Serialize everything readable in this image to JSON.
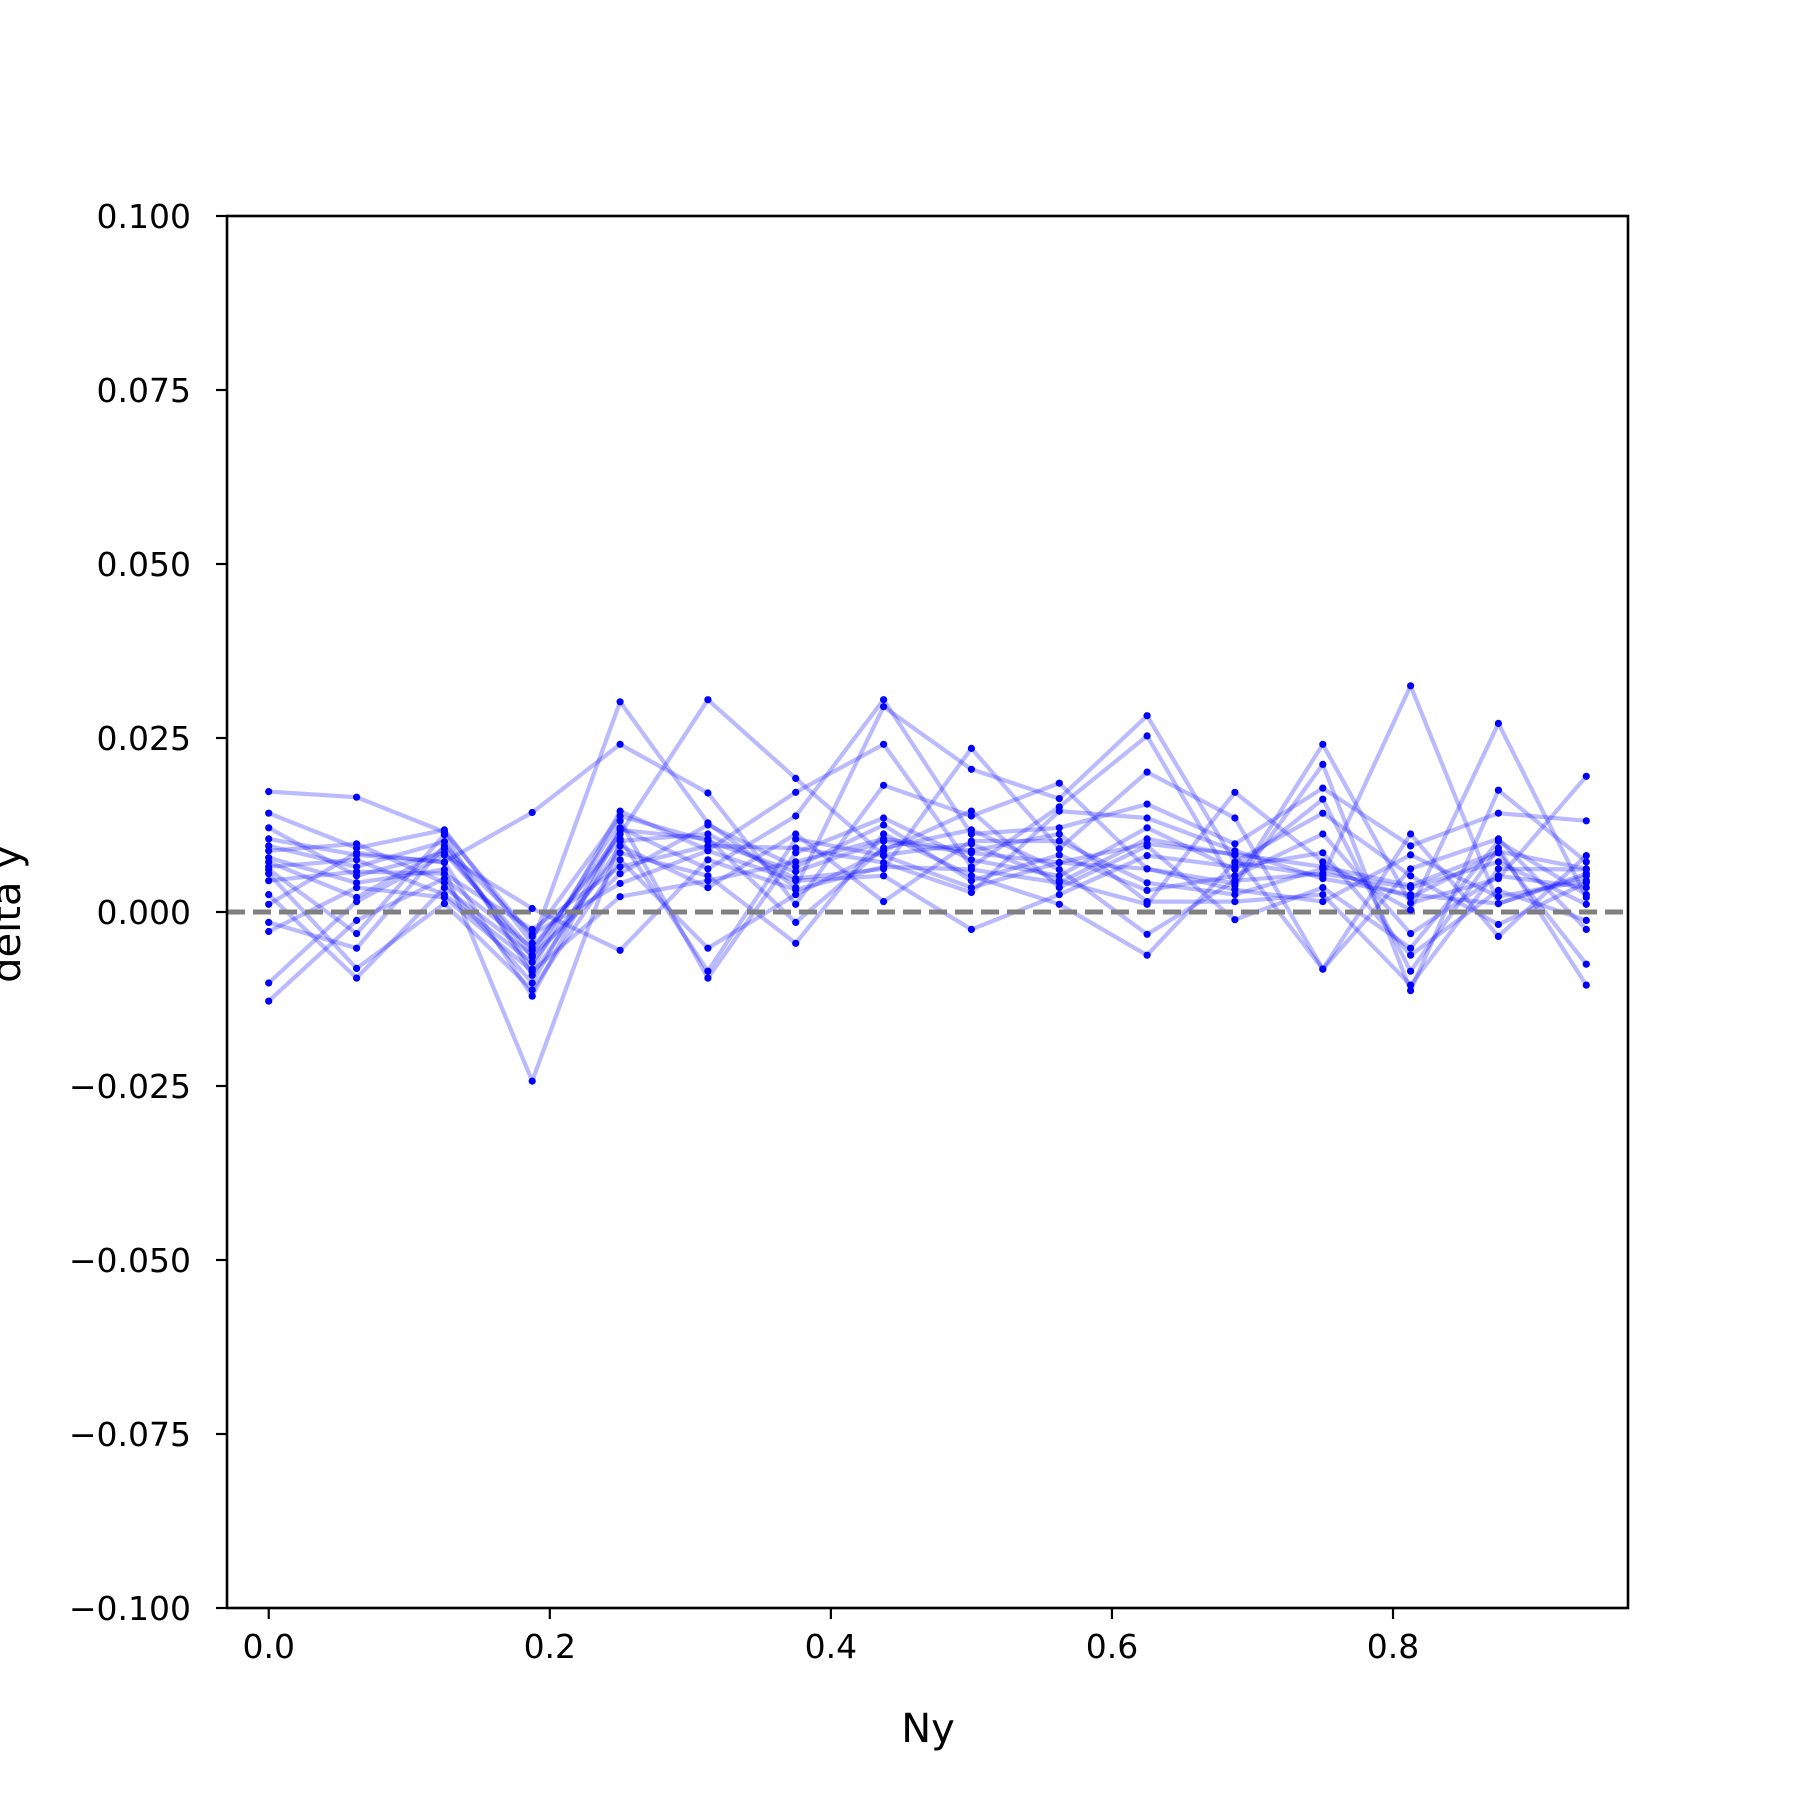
{
  "chart_data": {
    "type": "line",
    "title": "",
    "xlabel": "Ny",
    "ylabel": "delta y",
    "xlim": [
      -0.0297,
      0.9672
    ],
    "ylim": [
      -0.1,
      0.1
    ],
    "xticks": [
      0.0,
      0.2,
      0.4,
      0.6,
      0.8
    ],
    "xtick_labels": [
      "0.0",
      "0.2",
      "0.4",
      "0.6",
      "0.8"
    ],
    "yticks": [
      -0.1,
      -0.075,
      -0.05,
      -0.025,
      0.0,
      0.025,
      0.05,
      0.075,
      0.1
    ],
    "ytick_labels": [
      "−0.100",
      "−0.075",
      "−0.050",
      "−0.025",
      "0.000",
      "0.025",
      "0.050",
      "0.075",
      "0.100"
    ],
    "grid": false,
    "line_color": "#0000ff",
    "line_alpha": 0.27,
    "marker": "dot",
    "reference_line": {
      "y": 0.0,
      "style": "dashed",
      "color": "#808080"
    },
    "x": [
      0.0,
      0.0625,
      0.125,
      0.1875,
      0.25,
      0.3125,
      0.375,
      0.4375,
      0.5,
      0.5625,
      0.625,
      0.6875,
      0.75,
      0.8125,
      0.875,
      0.9375
    ],
    "series": [
      {
        "values": [
          0.0173,
          0.0165,
          0.0115,
          -0.0035,
          0.0138,
          0.0102,
          0.0058,
          0.0102,
          0.0085,
          0.0071,
          0.0098,
          0.0083,
          0.0065,
          0.0038,
          0.0087,
          0.0062
        ]
      },
      {
        "values": [
          0.0142,
          0.0092,
          0.0118,
          -0.0045,
          0.0302,
          0.0128,
          0.0035,
          0.0295,
          0.0205,
          0.0163,
          0.0282,
          0.0071,
          0.0052,
          0.0325,
          0.0012,
          0.0055
        ]
      },
      {
        "values": [
          0.0121,
          0.0052,
          0.0085,
          -0.0055,
          0.0112,
          0.0305,
          0.0192,
          0.0082,
          0.0098,
          0.0045,
          0.0011,
          0.0172,
          0.0072,
          0.0003,
          0.0271,
          0.0021
        ]
      },
      {
        "values": [
          0.0105,
          0.0082,
          0.0072,
          0.0143,
          0.0241,
          0.0171,
          0.0011,
          0.0182,
          0.0138,
          0.0185,
          0.0062,
          0.0041,
          0.0241,
          0.0013,
          0.0048,
          0.0195
        ]
      },
      {
        "values": [
          0.0095,
          0.0065,
          0.0101,
          -0.0082,
          0.0145,
          0.0089,
          0.0172,
          0.0241,
          0.0065,
          0.0151,
          0.0253,
          0.0038,
          0.0212,
          -0.0113,
          0.0175,
          0.0072
        ]
      },
      {
        "values": [
          0.0088,
          0.0098,
          0.0042,
          -0.0102,
          0.0121,
          0.0062,
          0.0138,
          0.0305,
          0.0112,
          0.0121,
          0.0155,
          0.0098,
          0.0178,
          0.0095,
          0.0142,
          0.0131
        ]
      },
      {
        "values": [
          0.0078,
          0.0042,
          0.0061,
          -0.0243,
          0.0102,
          0.0112,
          0.0048,
          0.0062,
          0.0235,
          0.0091,
          0.0201,
          0.0135,
          -0.0082,
          0.0112,
          -0.0035,
          0.0081
        ]
      },
      {
        "values": [
          0.0072,
          0.0021,
          0.0091,
          -0.0065,
          0.0131,
          -0.0095,
          0.0085,
          0.0135,
          0.0075,
          0.0052,
          0.0121,
          0.0061,
          0.0162,
          -0.0085,
          0.0092,
          -0.0105
        ]
      },
      {
        "values": [
          0.0065,
          0.0075,
          0.0025,
          -0.0072,
          0.0085,
          0.0052,
          -0.0045,
          0.0112,
          0.0052,
          0.0011,
          -0.0062,
          0.0072,
          0.0142,
          0.0052,
          -0.0018,
          0.0042
        ]
      },
      {
        "values": [
          0.0061,
          -0.0031,
          0.0111,
          -0.0091,
          0.0095,
          0.0035,
          0.0112,
          0.0015,
          0.0102,
          0.0102,
          0.0042,
          0.0025,
          0.0062,
          0.0021,
          0.0085,
          -0.0075
        ]
      },
      {
        "values": [
          0.0055,
          -0.0081,
          0.0012,
          -0.0112,
          0.0075,
          -0.0052,
          0.0025,
          0.0088,
          0.0145,
          0.0035,
          0.0095,
          -0.0011,
          0.0035,
          -0.0052,
          0.0102,
          0.0025
        ]
      },
      {
        "values": [
          0.0045,
          0.0058,
          0.0055,
          -0.0025,
          0.0065,
          0.0095,
          0.0092,
          0.0071,
          0.0028,
          0.0145,
          0.0135,
          0.0088,
          0.0048,
          0.0025,
          0.0012,
          0.0052
        ]
      },
      {
        "values": [
          0.0025,
          -0.0095,
          0.0035,
          -0.0062,
          0.0055,
          0.0125,
          0.0065,
          0.0125,
          0.0045,
          0.0082,
          0.0031,
          0.0052,
          0.0112,
          -0.0031,
          0.0052,
          0.0035
        ]
      },
      {
        "values": [
          0.0011,
          0.0085,
          0.0071,
          -0.0121,
          0.0118,
          0.0105,
          -0.0015,
          0.0092,
          0.0118,
          0.0061,
          -0.0032,
          0.0045,
          0.0055,
          0.0035,
          0.0072,
          0.0011
        ]
      },
      {
        "values": [
          -0.0015,
          -0.0052,
          0.0095,
          -0.0032,
          0.0041,
          0.0088,
          0.0045,
          0.0052,
          -0.0025,
          0.0025,
          0.0081,
          0.0065,
          0.0085,
          -0.0062,
          0.0031,
          -0.0012
        ]
      },
      {
        "values": [
          -0.0028,
          0.0035,
          0.0021,
          -0.0085,
          0.0022,
          0.0045,
          0.0072,
          0.0105,
          0.0088,
          0.0112,
          0.0015,
          0.0015,
          0.0025,
          -0.0105,
          0.0062,
          0.0061
        ]
      },
      {
        "values": [
          -0.0102,
          0.0015,
          0.0082,
          0.0005,
          -0.0055,
          0.0075,
          0.0032,
          0.0065,
          0.0061,
          0.0042,
          0.0105,
          0.0082,
          -0.0082,
          0.0062,
          0.0105,
          -0.0025
        ]
      },
      {
        "values": [
          -0.0128,
          -0.0012,
          0.0048,
          -0.0051,
          0.0105,
          -0.0085,
          0.0105,
          0.0081,
          0.0035,
          0.0071,
          0.0062,
          0.0032,
          0.0015,
          0.0082,
          0.0022,
          0.0045
        ]
      }
    ]
  }
}
